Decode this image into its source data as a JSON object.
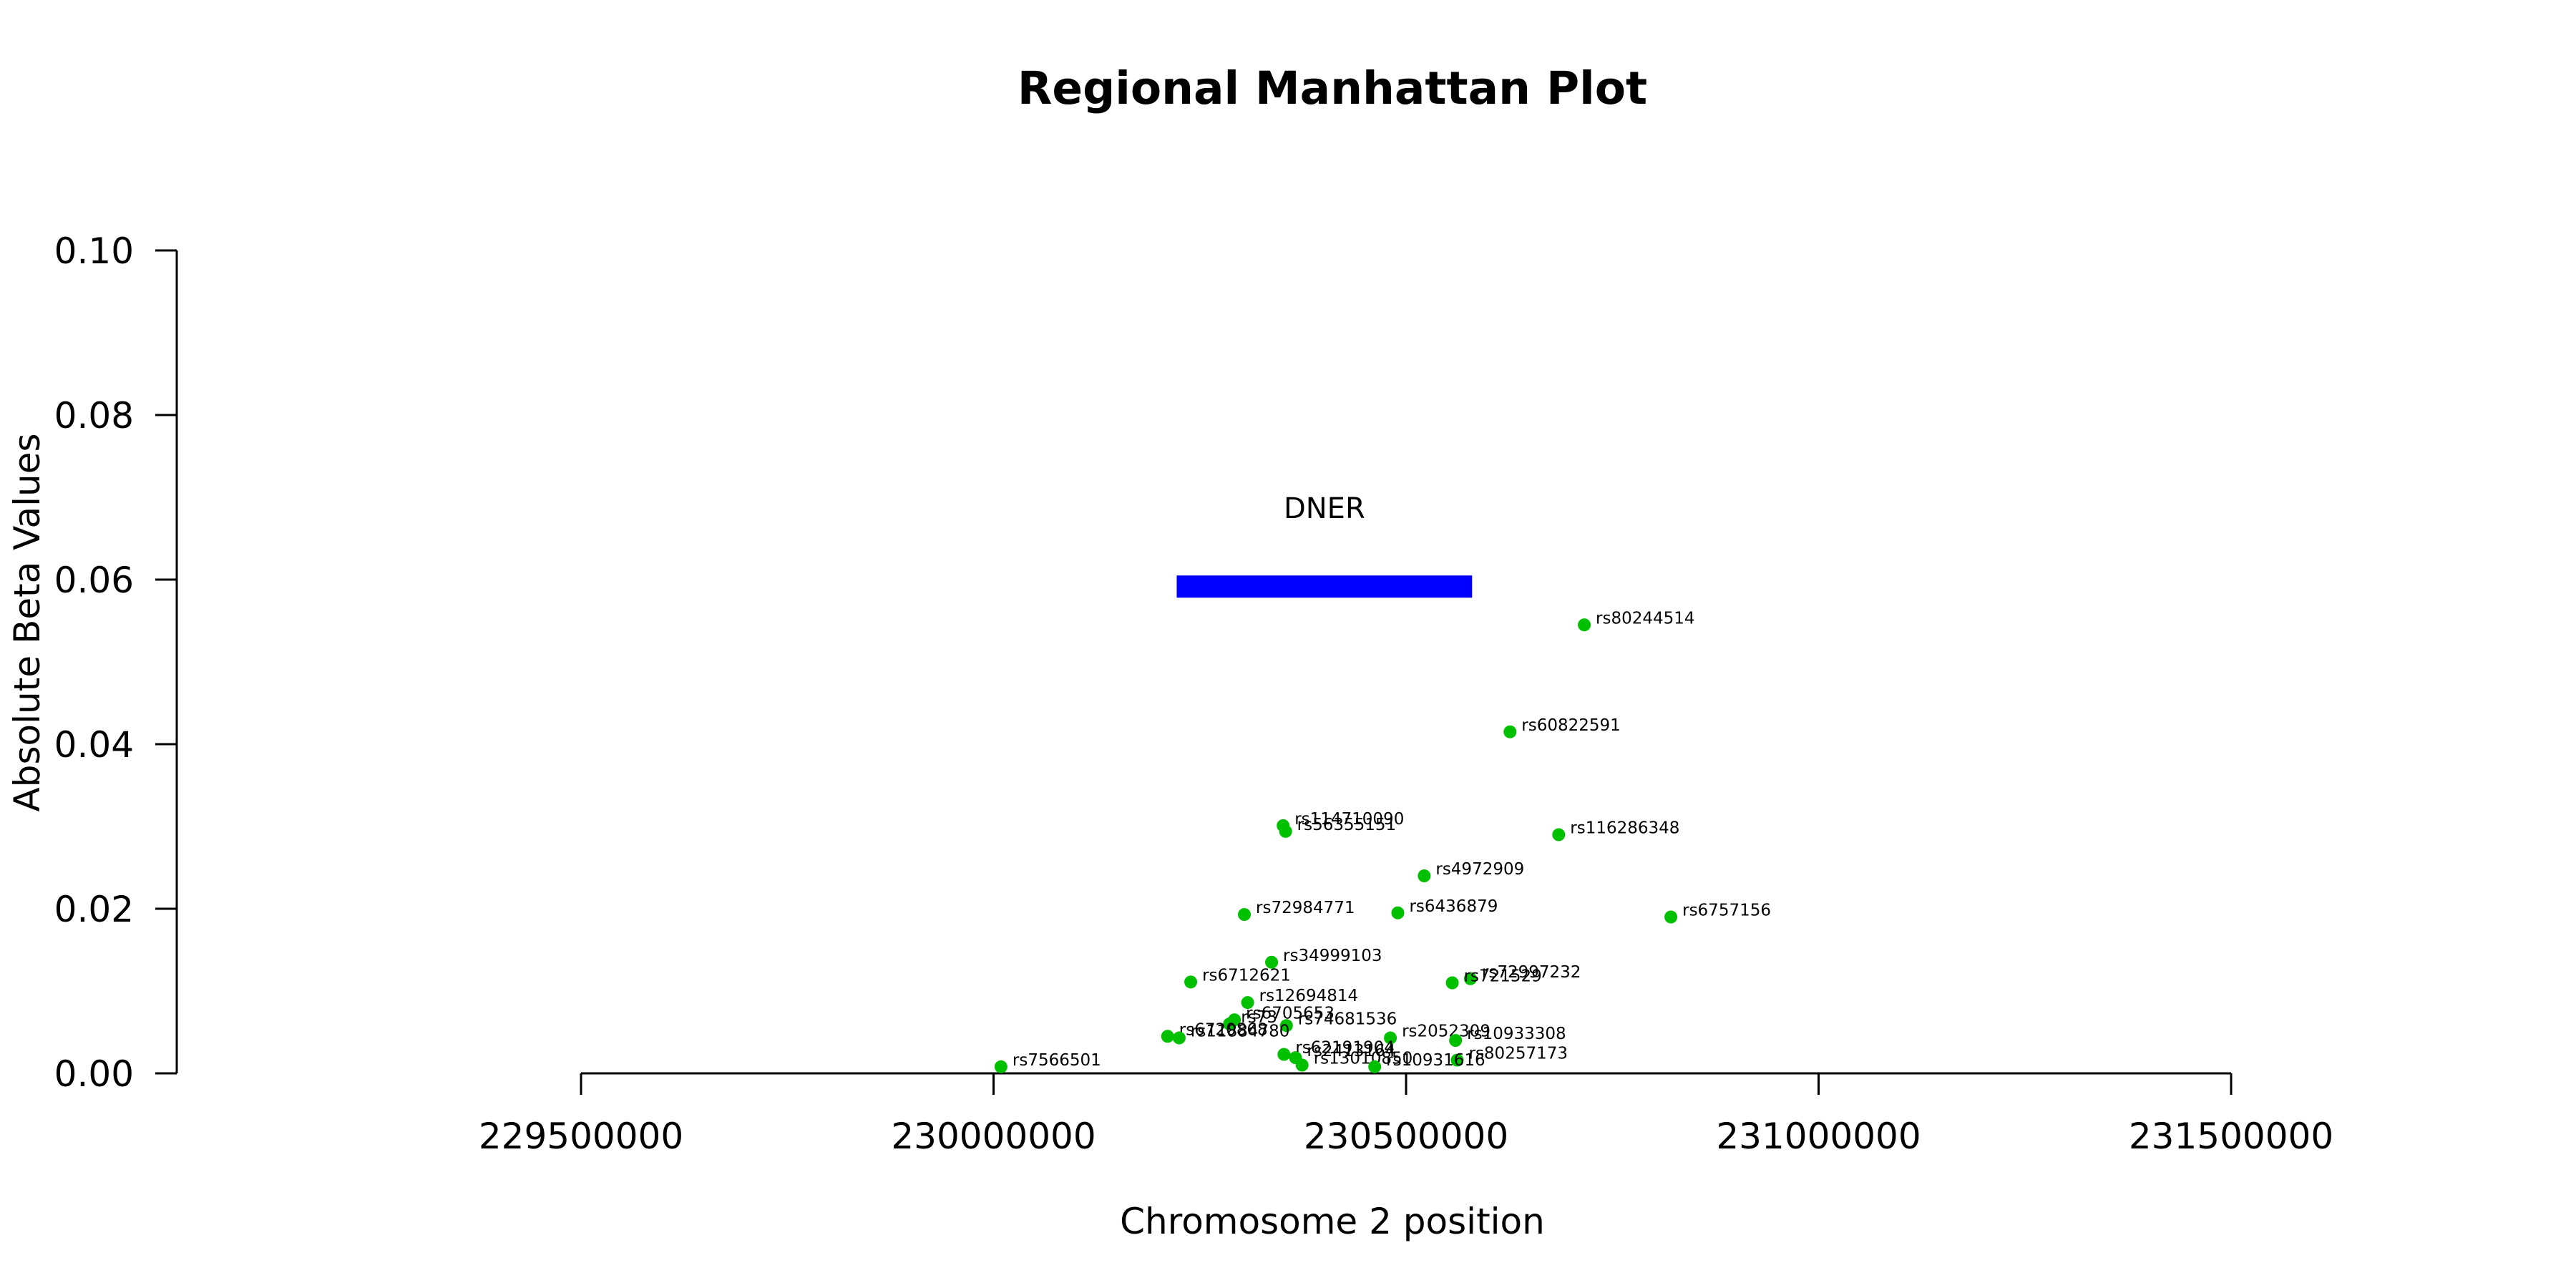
{
  "chart_data": {
    "type": "scatter",
    "title": "Regional Manhattan Plot",
    "xlabel": "Chromosome 2 position",
    "ylabel": "Absolute Beta Values",
    "xlim": [
      229450000,
      231550000
    ],
    "ylim": [
      0,
      0.1
    ],
    "x_ticks": [
      229500000,
      230000000,
      230500000,
      231000000,
      231500000
    ],
    "x_tick_labels": [
      "229500000",
      "230000000",
      "230500000",
      "231000000",
      "231500000"
    ],
    "y_ticks": [
      0,
      0.02,
      0.04,
      0.06,
      0.08,
      0.1
    ],
    "y_tick_labels": [
      "0.00",
      "0.02",
      "0.04",
      "0.06",
      "0.08",
      "0.10"
    ],
    "grid": false,
    "point_color": "#00c000",
    "gene": {
      "name": "DNER",
      "start": 230222000,
      "end": 230580000,
      "y_low": 0.0578,
      "y_high": 0.0605,
      "label_y": 0.0687,
      "color": "#0000ff"
    },
    "points": [
      {
        "label": "rs80244514",
        "x": 230716000,
        "y": 0.0545
      },
      {
        "label": "rs60822591",
        "x": 230626000,
        "y": 0.0415
      },
      {
        "label": "rs114710090",
        "x": 230351000,
        "y": 0.0301
      },
      {
        "label": "rs56355151",
        "x": 230354000,
        "y": 0.0294
      },
      {
        "label": "rs116286348",
        "x": 230685000,
        "y": 0.029
      },
      {
        "label": "rs4972909",
        "x": 230522000,
        "y": 0.024
      },
      {
        "label": "rs72984771",
        "x": 230304000,
        "y": 0.0193
      },
      {
        "label": "rs6436879",
        "x": 230490000,
        "y": 0.0195
      },
      {
        "label": "rs6757156",
        "x": 230821000,
        "y": 0.019
      },
      {
        "label": "rs34999103",
        "x": 230337000,
        "y": 0.0135
      },
      {
        "label": "rs6712621",
        "x": 230239000,
        "y": 0.0111
      },
      {
        "label": "rs72997232",
        "x": 230578000,
        "y": 0.0115
      },
      {
        "label": "rs721529",
        "x": 230556000,
        "y": 0.011
      },
      {
        "label": "rs12694814",
        "x": 230308000,
        "y": 0.0086
      },
      {
        "label": "rs6705653",
        "x": 230292000,
        "y": 0.0065
      },
      {
        "label": "rs73",
        "x": 230286000,
        "y": 0.006
      },
      {
        "label": "rs74681536",
        "x": 230355000,
        "y": 0.0058
      },
      {
        "label": "rs2052309",
        "x": 230481000,
        "y": 0.0043
      },
      {
        "label": "rs10933308",
        "x": 230560000,
        "y": 0.004
      },
      {
        "label": "rs6720868",
        "x": 230211000,
        "y": 0.0045
      },
      {
        "label": "rs11884780",
        "x": 230225000,
        "y": 0.0043
      },
      {
        "label": "rs80257173",
        "x": 230562000,
        "y": 0.0016
      },
      {
        "label": "rs62191904",
        "x": 230352000,
        "y": 0.0023
      },
      {
        "label": "rs2413164",
        "x": 230366000,
        "y": 0.0019
      },
      {
        "label": "rs13010850",
        "x": 230374000,
        "y": 0.001
      },
      {
        "label": "rs10931616",
        "x": 230462000,
        "y": 0.0008
      },
      {
        "label": "rs7566501",
        "x": 230009000,
        "y": 0.0008
      }
    ]
  }
}
